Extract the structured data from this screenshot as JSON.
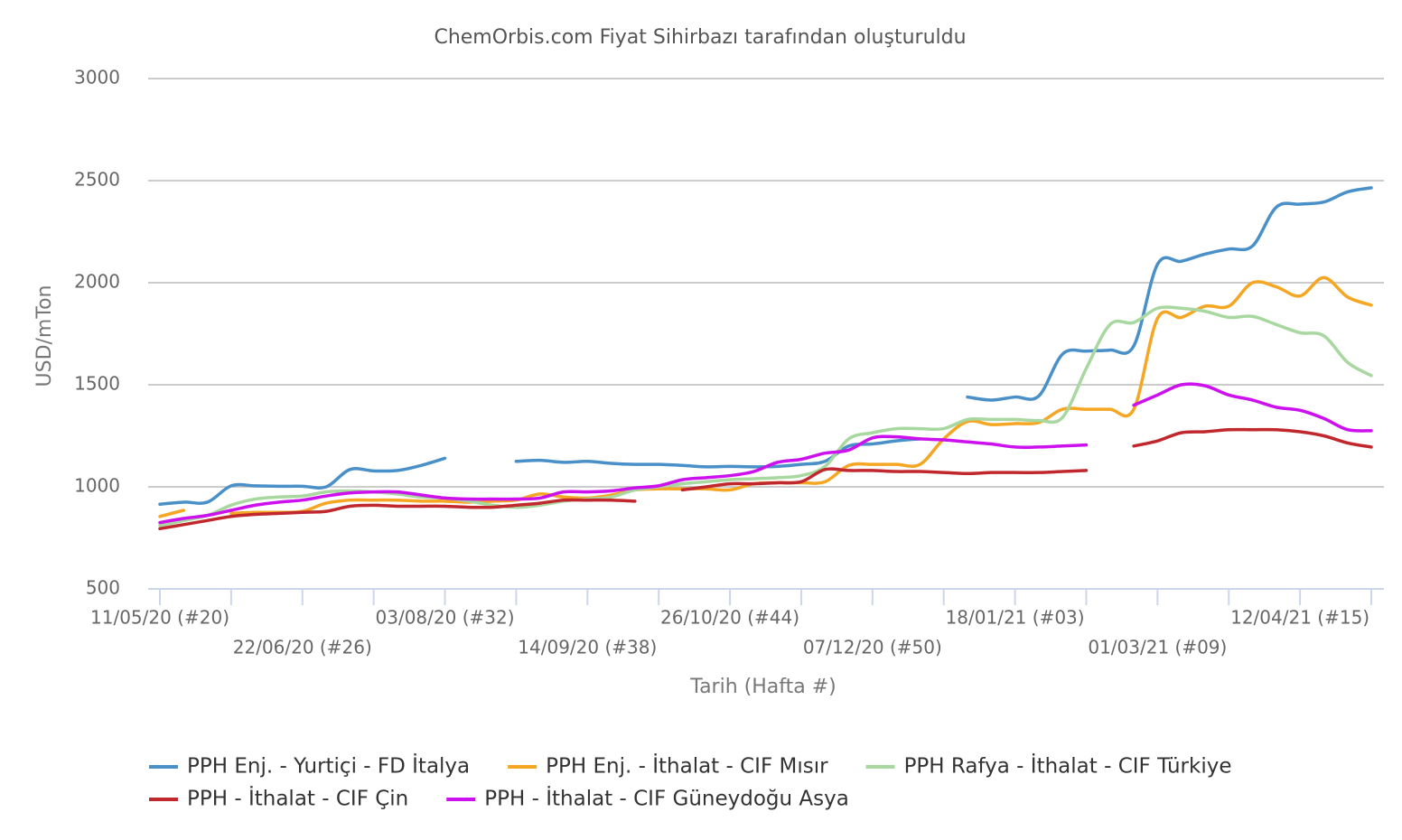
{
  "chart_data": {
    "type": "line",
    "title": "ChemOrbis.com Fiyat Sihirbazı tarafından oluşturuldu",
    "y_label": "USD/mTon",
    "x_label": "Tarih (Hafta #)",
    "categories": [
      "11/05/20 (#20)",
      null,
      null,
      null,
      null,
      null,
      "22/06/20 (#26)",
      null,
      null,
      null,
      null,
      null,
      "03/08/20 (#32)",
      null,
      null,
      null,
      null,
      null,
      "14/09/20 (#38)",
      null,
      null,
      null,
      null,
      null,
      "26/10/20 (#44)",
      null,
      null,
      null,
      null,
      null,
      "07/12/20 (#50)",
      null,
      null,
      null,
      null,
      null,
      "18/01/21 (#03)",
      null,
      null,
      null,
      null,
      null,
      "01/03/21 (#09)",
      null,
      null,
      null,
      null,
      null,
      "12/04/21 (#15)",
      null,
      null,
      null
    ],
    "ylim": [
      500,
      3000
    ],
    "yticks": [
      500,
      1000,
      1500,
      2000,
      2500,
      3000
    ],
    "grid": true,
    "series": [
      {
        "name": "PPH Enj. - Yurtiçi - FD İtalya",
        "color": "#4a90c8",
        "values": [
          915,
          925,
          925,
          1005,
          1005,
          1003,
          1003,
          1000,
          1085,
          1078,
          1080,
          1105,
          1140,
          null,
          null,
          1125,
          1130,
          1120,
          1125,
          1115,
          1110,
          1110,
          1105,
          1098,
          1100,
          1098,
          1100,
          1110,
          1125,
          1200,
          1210,
          1225,
          1235,
          null,
          1440,
          1425,
          1440,
          1445,
          1650,
          1665,
          1670,
          1690,
          2090,
          2105,
          2140,
          2165,
          2180,
          2370,
          2385,
          2395,
          2445,
          2465
        ]
      },
      {
        "name": "PPH Enj. - İthalat - CIF Mısır",
        "color": "#f5a623",
        "values": [
          855,
          885,
          null,
          870,
          875,
          875,
          880,
          920,
          935,
          935,
          935,
          930,
          930,
          925,
          930,
          935,
          965,
          950,
          945,
          960,
          985,
          990,
          990,
          990,
          985,
          1015,
          1020,
          1020,
          1025,
          1105,
          1110,
          1110,
          1110,
          1235,
          1320,
          1305,
          1310,
          1315,
          1380,
          1380,
          1380,
          1380,
          1825,
          1830,
          1885,
          1885,
          2000,
          1980,
          1935,
          2025,
          1930,
          1890
        ]
      },
      {
        "name": "PPH Rafya - İthalat - CIF Türkiye",
        "color": "#a8d8a0",
        "values": [
          810,
          835,
          860,
          910,
          940,
          950,
          955,
          975,
          980,
          975,
          965,
          950,
          945,
          930,
          910,
          900,
          910,
          930,
          940,
          950,
          985,
          1000,
          1015,
          1025,
          1035,
          1040,
          1045,
          1055,
          1100,
          1235,
          1265,
          1285,
          1285,
          1285,
          1330,
          1330,
          1330,
          1325,
          1340,
          1580,
          1795,
          1805,
          1875,
          1875,
          1860,
          1830,
          1835,
          1795,
          1755,
          1740,
          1610,
          1545
        ]
      },
      {
        "name": "PPH - İthalat - CIF Çin",
        "color": "#c0282d",
        "values": [
          795,
          815,
          835,
          855,
          865,
          870,
          875,
          880,
          905,
          910,
          905,
          905,
          905,
          900,
          900,
          910,
          920,
          935,
          935,
          935,
          930,
          null,
          985,
          1000,
          1015,
          1015,
          1020,
          1025,
          1085,
          1080,
          1080,
          1075,
          1075,
          1070,
          1065,
          1070,
          1070,
          1070,
          1075,
          1080,
          null,
          1200,
          1225,
          1265,
          1270,
          1280,
          1280,
          1280,
          1270,
          1250,
          1215,
          1195
        ]
      },
      {
        "name": "PPH - İthalat - CIF Güneydoğu Asya",
        "color": "#cc11ee",
        "values": [
          825,
          845,
          860,
          885,
          910,
          925,
          935,
          955,
          970,
          975,
          975,
          960,
          945,
          940,
          940,
          940,
          945,
          975,
          975,
          980,
          995,
          1005,
          1035,
          1045,
          1055,
          1075,
          1120,
          1135,
          1165,
          1180,
          1240,
          1245,
          1235,
          1230,
          1220,
          1210,
          1195,
          1195,
          1200,
          1205,
          null,
          1400,
          1450,
          1500,
          1495,
          1450,
          1425,
          1390,
          1375,
          1335,
          1280,
          1275
        ]
      }
    ]
  }
}
